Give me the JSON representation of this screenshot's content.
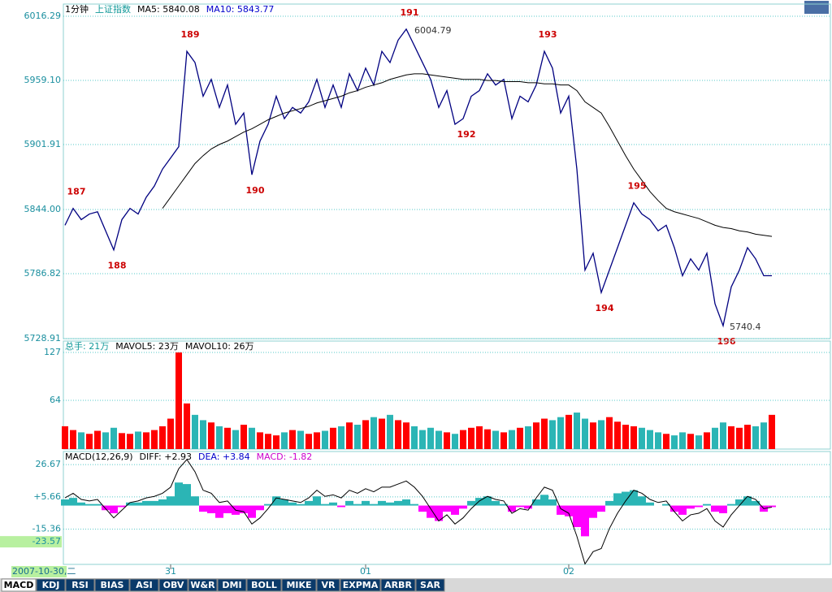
{
  "chart_data": [
    {
      "type": "line",
      "panel": "price",
      "header": [
        "1分钟",
        "上证指数",
        "MA5: 5840.08",
        "MA10: 5843.77"
      ],
      "categories": [
        null,
        null,
        null,
        null,
        null,
        null,
        null,
        null,
        null,
        null,
        null,
        null,
        null,
        "31",
        null,
        null,
        null,
        null,
        null,
        null,
        null,
        null,
        null,
        null,
        null,
        null,
        null,
        null,
        null,
        null,
        null,
        null,
        null,
        null,
        null,
        null,
        null,
        "01",
        null,
        null,
        null,
        null,
        null,
        null,
        null,
        null,
        null,
        null,
        null,
        null,
        null,
        null,
        null,
        null,
        null,
        null,
        null,
        null,
        null,
        null,
        null,
        null,
        "02",
        null,
        null,
        null,
        null,
        null,
        null,
        null,
        null,
        null,
        null,
        null,
        null,
        null,
        null,
        null,
        null,
        null,
        null,
        null,
        null,
        null,
        null,
        null,
        null,
        null
      ],
      "series": [
        {
          "color": "#000080",
          "values": [
            5830,
            5845,
            5835,
            5840,
            5842,
            5825,
            5808,
            5835,
            5845,
            5840,
            5855,
            5865,
            5880,
            5890,
            5900,
            5985,
            5975,
            5945,
            5960,
            5935,
            5955,
            5920,
            5930,
            5875,
            5905,
            5920,
            5945,
            5925,
            5935,
            5930,
            5940,
            5960,
            5935,
            5955,
            5935,
            5965,
            5950,
            5970,
            5955,
            5985,
            5975,
            5995,
            6004.79,
            5990,
            5975,
            5960,
            5935,
            5950,
            5920,
            5925,
            5945,
            5950,
            5965,
            5955,
            5960,
            5925,
            5945,
            5940,
            5955,
            5985,
            5970,
            5930,
            5945,
            5880,
            5790,
            5805,
            5770,
            5790,
            5810,
            5830,
            5850,
            5840,
            5835,
            5825,
            5830,
            5810,
            5785,
            5800,
            5790,
            5805,
            5760,
            5740.4,
            5775,
            5790,
            5810,
            5800,
            5785,
            5785
          ]
        },
        {
          "color": "#000000",
          "values": [
            null,
            null,
            null,
            null,
            null,
            null,
            null,
            null,
            null,
            null,
            null,
            null,
            5845,
            5855,
            5865,
            5875,
            5885,
            5892,
            5898,
            5902,
            5905,
            5909,
            5913,
            5916,
            5920,
            5924,
            5927,
            5930,
            5932,
            5934,
            5936,
            5939,
            5941,
            5943,
            5945,
            5948,
            5950,
            5953,
            5955,
            5957,
            5960,
            5962,
            5964,
            5965,
            5965,
            5964,
            5963,
            5962,
            5961,
            5960,
            5960,
            5960,
            5959,
            5959,
            5958,
            5958,
            5958,
            5957,
            5957,
            5956,
            5956,
            5955,
            5955,
            5950,
            5940,
            5935,
            5930,
            5918,
            5905,
            5892,
            5880,
            5870,
            5860,
            5852,
            5845,
            5842,
            5840,
            5838,
            5836,
            5833,
            5830,
            5828,
            5827,
            5825,
            5824,
            5822,
            5821,
            5820
          ]
        }
      ],
      "ylim": [
        5728.91,
        6027.15
      ],
      "yticks": [
        6016.29,
        {
          "value": 5959.1,
          "label": "5959.10"
        },
        5901.91,
        {
          "value": 5844,
          "label": "5844.00"
        },
        5786.82,
        5728.91
      ],
      "wave_labels": [
        "187",
        "188",
        "189",
        "190",
        "191",
        "192",
        "193",
        "194",
        "195",
        "196"
      ],
      "high": 6004.79,
      "low": 5740.4,
      "grid": true
    },
    {
      "type": "bar",
      "panel": "volume",
      "header": [
        "总手: 21万",
        "MAVOL5: 23万",
        "MAVOL10: 26万"
      ],
      "values": [
        30,
        25,
        22,
        20,
        24,
        22,
        28,
        21,
        20,
        23,
        22,
        25,
        30,
        40,
        127,
        60,
        45,
        38,
        35,
        30,
        28,
        25,
        32,
        28,
        22,
        20,
        18,
        22,
        25,
        24,
        20,
        22,
        24,
        28,
        30,
        35,
        32,
        38,
        42,
        40,
        45,
        38,
        35,
        30,
        25,
        28,
        24,
        22,
        20,
        25,
        28,
        30,
        26,
        24,
        22,
        25,
        28,
        30,
        35,
        40,
        38,
        42,
        45,
        48,
        40,
        35,
        38,
        42,
        36,
        32,
        30,
        28,
        25,
        22,
        20,
        18,
        22,
        20,
        18,
        22,
        28,
        35,
        30,
        28,
        32,
        30,
        35,
        45
      ],
      "up_color": "#ff0000",
      "down_color": "#2bb5b5",
      "ylim": [
        0,
        142
      ],
      "yticks": [
        127,
        64
      ],
      "grid": true
    },
    {
      "type": "macd",
      "panel": "macd",
      "header": [
        "MACD(12,26,9)",
        "DIFF: +2.93",
        "DEA: +3.84",
        "MACD: -1.82"
      ],
      "diff": [
        5,
        8,
        4,
        3,
        4,
        -2,
        -8,
        -3,
        2,
        3,
        5,
        6,
        8,
        12,
        24,
        30,
        22,
        10,
        8,
        2,
        3,
        -3,
        -4,
        -12,
        -8,
        -2,
        5,
        4,
        3,
        2,
        5,
        10,
        6,
        7,
        5,
        10,
        8,
        11,
        9,
        12,
        12,
        14,
        16,
        12,
        6,
        -2,
        -10,
        -6,
        -12,
        -8,
        -2,
        3,
        6,
        4,
        3,
        -5,
        -2,
        -3,
        5,
        12,
        10,
        -2,
        -5,
        -20,
        -38,
        -30,
        -28,
        -15,
        -5,
        3,
        10,
        8,
        4,
        2,
        3,
        -4,
        -10,
        -6,
        -5,
        -2,
        -10,
        -14,
        -6,
        0,
        6,
        4,
        -2,
        -1
      ],
      "hist": [
        4,
        5,
        2,
        1,
        1,
        -3,
        -5,
        -1,
        2,
        2,
        3,
        3,
        4,
        6,
        15,
        14,
        6,
        -4,
        -5,
        -8,
        -5,
        -6,
        -5,
        -8,
        -3,
        1,
        6,
        4,
        2,
        1,
        3,
        6,
        1,
        2,
        -1,
        3,
        1,
        3,
        1,
        3,
        2,
        3,
        4,
        1,
        -4,
        -8,
        -10,
        -4,
        -6,
        -2,
        3,
        5,
        6,
        3,
        1,
        -4,
        -1,
        -2,
        4,
        7,
        4,
        -6,
        -7,
        -14,
        -20,
        -8,
        -4,
        3,
        8,
        9,
        10,
        6,
        2,
        0,
        1,
        -4,
        -6,
        -2,
        -1,
        1,
        -4,
        -5,
        1,
        4,
        6,
        3,
        -4,
        -1
      ],
      "pos_color": "#2bb5b5",
      "neg_color": "#ff00ff",
      "ylim": [
        -38.3,
        35.2
      ],
      "yticks": [
        26.67,
        {
          "value": 5.66,
          "label": "+5.66"
        },
        -15.36
      ],
      "cursor_value": -23.57,
      "grid": true
    }
  ],
  "cursor_date": "2007-10-30,二",
  "tabs": [
    "MACD",
    "KDJ",
    "RSI",
    "BIAS",
    "ASI",
    "OBV",
    "W&R",
    "DMI",
    "BOLL",
    "MIKE",
    "VR",
    "EXPMA",
    "ARBR",
    "SAR"
  ]
}
